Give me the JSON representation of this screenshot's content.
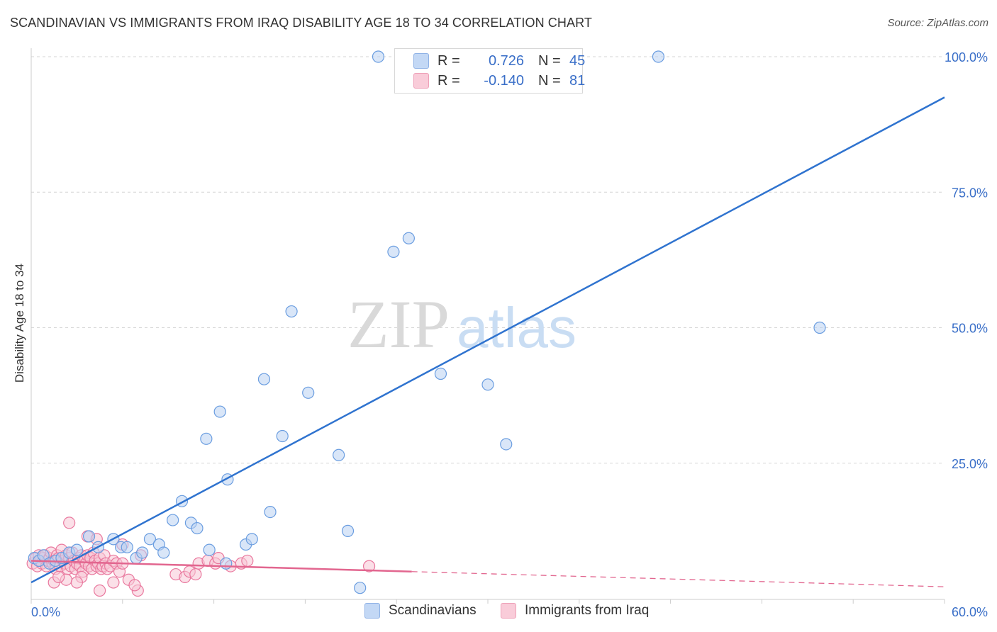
{
  "header": {
    "title": "SCANDINAVIAN VS IMMIGRANTS FROM IRAQ DISABILITY AGE 18 TO 34 CORRELATION CHART",
    "source": "Source: ZipAtlas.com"
  },
  "watermark": {
    "zip": "ZIP",
    "atlas": "atlas"
  },
  "legend": {
    "rows": [
      {
        "r_label": "R =",
        "r_value": "0.726",
        "n_label": "N =",
        "n_value": "45",
        "color": "#aac8f0"
      },
      {
        "r_label": "R =",
        "r_value": "-0.140",
        "n_label": "N =",
        "n_value": "81",
        "color": "#f6b9cb"
      }
    ]
  },
  "bottom_legend": [
    {
      "label": "Scandinavians",
      "color": "#aac8f0"
    },
    {
      "label": "Immigrants from Iraq",
      "color": "#f6b9cb"
    }
  ],
  "chart_data": {
    "type": "scatter",
    "title": "SCANDINAVIAN VS IMMIGRANTS FROM IRAQ DISABILITY AGE 18 TO 34 CORRELATION CHART",
    "xlabel": "",
    "ylabel": "Disability Age 18 to 34",
    "xlim": [
      0,
      60
    ],
    "ylim": [
      0,
      102
    ],
    "x_tick_labels": [
      {
        "value": 0,
        "label": "0.0%"
      },
      {
        "value": 60,
        "label": "60.0%"
      }
    ],
    "y_tick_labels": [
      {
        "value": 25,
        "label": "25.0%"
      },
      {
        "value": 50,
        "label": "50.0%"
      },
      {
        "value": 75,
        "label": "75.0%"
      },
      {
        "value": 100,
        "label": "100.0%"
      }
    ],
    "gridlines": [
      25,
      50,
      75,
      100
    ],
    "series": [
      {
        "name": "Scandinavians",
        "color": "#6a9de0",
        "fill": "#b9d2f3",
        "trend": {
          "x0": 0,
          "y0": 3.0,
          "x1": 60,
          "y1": 92.5,
          "style": "solid"
        },
        "points": [
          [
            0.2,
            7.5
          ],
          [
            0.5,
            7.0
          ],
          [
            0.8,
            8.0
          ],
          [
            1.2,
            6.5
          ],
          [
            1.6,
            7.0
          ],
          [
            2.0,
            7.5
          ],
          [
            2.5,
            8.5
          ],
          [
            3.0,
            9.0
          ],
          [
            3.8,
            11.5
          ],
          [
            4.4,
            9.5
          ],
          [
            5.4,
            11.0
          ],
          [
            5.9,
            9.5
          ],
          [
            6.3,
            9.5
          ],
          [
            6.9,
            7.5
          ],
          [
            7.3,
            8.5
          ],
          [
            7.8,
            11.0
          ],
          [
            8.4,
            10.0
          ],
          [
            8.7,
            8.5
          ],
          [
            9.3,
            14.5
          ],
          [
            9.9,
            18.0
          ],
          [
            10.5,
            14.0
          ],
          [
            10.9,
            13.0
          ],
          [
            11.5,
            29.5
          ],
          [
            11.7,
            9.0
          ],
          [
            12.4,
            34.5
          ],
          [
            12.8,
            6.5
          ],
          [
            12.9,
            22.0
          ],
          [
            14.1,
            10.0
          ],
          [
            14.5,
            11.0
          ],
          [
            15.3,
            40.5
          ],
          [
            15.7,
            16.0
          ],
          [
            16.5,
            30.0
          ],
          [
            17.1,
            53.0
          ],
          [
            18.2,
            38.0
          ],
          [
            20.2,
            26.5
          ],
          [
            20.8,
            12.5
          ],
          [
            21.6,
            2.0
          ],
          [
            23.8,
            64.0
          ],
          [
            24.8,
            66.5
          ],
          [
            26.9,
            41.5
          ],
          [
            30.0,
            39.5
          ],
          [
            31.2,
            28.5
          ],
          [
            41.2,
            100.0
          ],
          [
            22.8,
            100.0
          ],
          [
            51.8,
            50.0
          ]
        ]
      },
      {
        "name": "Immigrants from Iraq",
        "color": "#e9789e",
        "fill": "#f8c6d5",
        "trend": {
          "x0": 0,
          "y0": 7.0,
          "x1": 25,
          "y1": 5.0,
          "style": "solid",
          "dashed_to_x": 60,
          "dashed_to_y": 2.2
        },
        "points": [
          [
            0.1,
            6.5
          ],
          [
            0.3,
            7.5
          ],
          [
            0.4,
            6.0
          ],
          [
            0.5,
            8.0
          ],
          [
            0.6,
            7.0
          ],
          [
            0.7,
            6.5
          ],
          [
            0.8,
            7.5
          ],
          [
            0.9,
            8.0
          ],
          [
            1.0,
            6.0
          ],
          [
            1.1,
            7.0
          ],
          [
            1.2,
            7.5
          ],
          [
            1.3,
            8.5
          ],
          [
            1.4,
            6.5
          ],
          [
            1.5,
            7.0
          ],
          [
            1.6,
            5.5
          ],
          [
            1.7,
            8.0
          ],
          [
            1.8,
            7.5
          ],
          [
            1.9,
            6.0
          ],
          [
            2.0,
            9.0
          ],
          [
            2.1,
            7.0
          ],
          [
            2.2,
            6.5
          ],
          [
            2.3,
            8.0
          ],
          [
            2.4,
            5.5
          ],
          [
            2.5,
            7.5
          ],
          [
            2.6,
            6.0
          ],
          [
            2.7,
            8.5
          ],
          [
            2.8,
            7.0
          ],
          [
            2.9,
            5.5
          ],
          [
            3.0,
            6.5
          ],
          [
            3.1,
            7.5
          ],
          [
            3.2,
            6.0
          ],
          [
            3.3,
            8.0
          ],
          [
            3.4,
            5.0
          ],
          [
            3.5,
            7.0
          ],
          [
            3.6,
            6.5
          ],
          [
            3.7,
            8.0
          ],
          [
            3.8,
            6.0
          ],
          [
            3.9,
            7.5
          ],
          [
            4.0,
            5.5
          ],
          [
            4.1,
            8.5
          ],
          [
            4.2,
            7.0
          ],
          [
            4.3,
            6.0
          ],
          [
            4.4,
            6.5
          ],
          [
            4.5,
            7.5
          ],
          [
            4.6,
            5.5
          ],
          [
            4.7,
            6.0
          ],
          [
            4.8,
            8.0
          ],
          [
            4.9,
            6.5
          ],
          [
            5.0,
            5.5
          ],
          [
            5.2,
            6.0
          ],
          [
            5.4,
            7.0
          ],
          [
            5.6,
            6.5
          ],
          [
            5.8,
            5.0
          ],
          [
            6.0,
            6.5
          ],
          [
            1.5,
            3.0
          ],
          [
            2.3,
            3.5
          ],
          [
            2.5,
            14.0
          ],
          [
            3.3,
            4.0
          ],
          [
            3.7,
            11.5
          ],
          [
            4.3,
            11.0
          ],
          [
            4.5,
            1.5
          ],
          [
            5.4,
            3.0
          ],
          [
            6.0,
            10.0
          ],
          [
            6.4,
            3.5
          ],
          [
            7.0,
            1.5
          ],
          [
            7.2,
            8.0
          ],
          [
            9.5,
            4.5
          ],
          [
            10.1,
            4.0
          ],
          [
            10.4,
            5.0
          ],
          [
            10.8,
            4.5
          ],
          [
            11.0,
            6.5
          ],
          [
            11.6,
            7.0
          ],
          [
            12.1,
            6.5
          ],
          [
            12.3,
            7.5
          ],
          [
            13.1,
            6.0
          ],
          [
            13.8,
            6.5
          ],
          [
            14.2,
            7.0
          ],
          [
            22.2,
            6.0
          ],
          [
            1.8,
            4.0
          ],
          [
            3.0,
            3.0
          ],
          [
            6.8,
            2.5
          ]
        ]
      }
    ],
    "legend_position": "top-center"
  }
}
